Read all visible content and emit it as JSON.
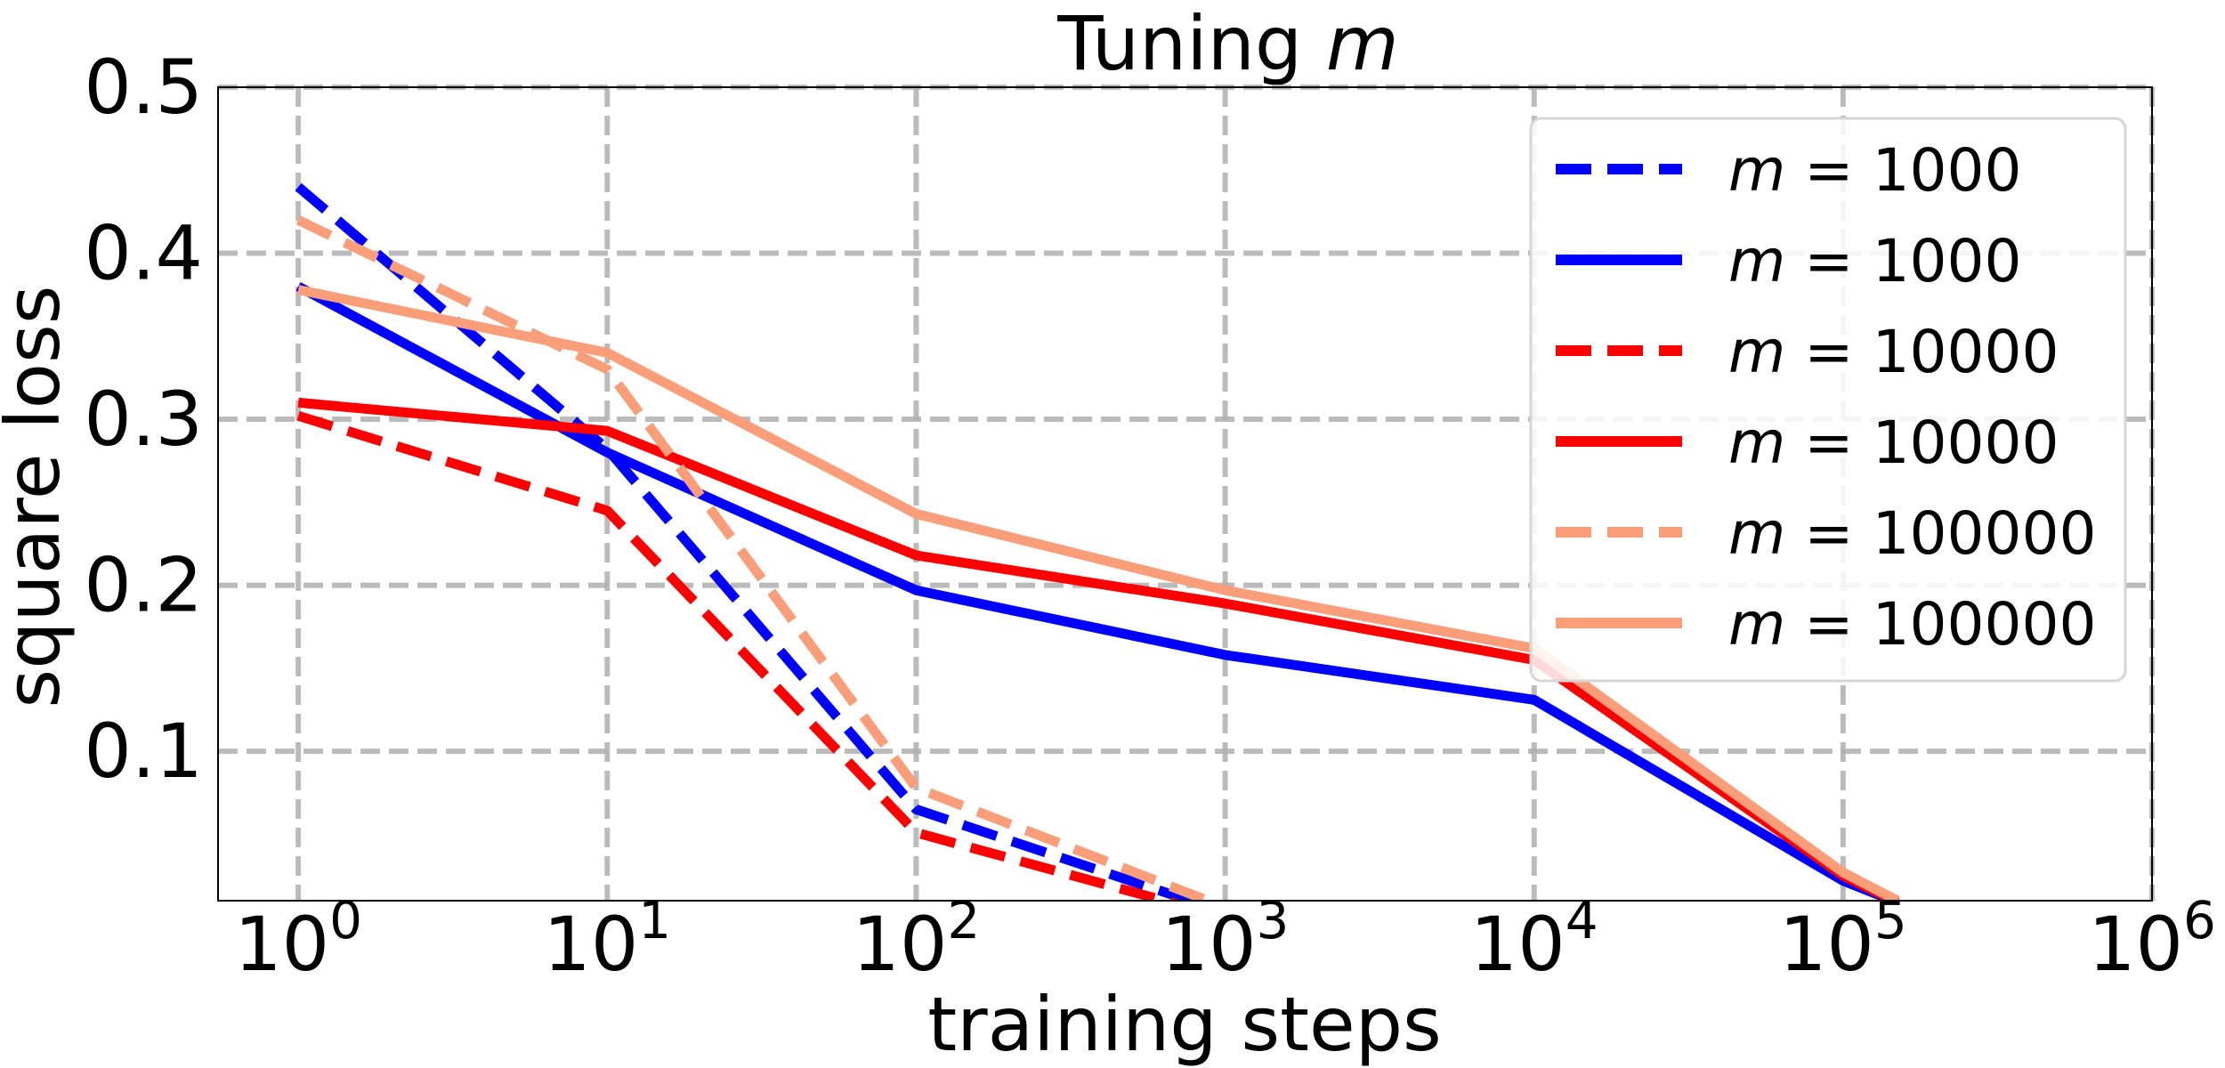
{
  "chart_data": {
    "type": "line",
    "title_prefix": "Tuning ",
    "title_var": "m",
    "xlabel": "training steps",
    "ylabel": "square loss",
    "xscale": "log",
    "xlim": [
      0.55,
      1000000
    ],
    "ylim": [
      0.01,
      0.5
    ],
    "grid": true,
    "legend_position": "top-right",
    "x_ticks": [
      {
        "value": 1,
        "base": "10",
        "exp": "0"
      },
      {
        "value": 10,
        "base": "10",
        "exp": "1"
      },
      {
        "value": 100,
        "base": "10",
        "exp": "2"
      },
      {
        "value": 1000,
        "base": "10",
        "exp": "3"
      },
      {
        "value": 10000,
        "base": "10",
        "exp": "4"
      },
      {
        "value": 100000,
        "base": "10",
        "exp": "5"
      },
      {
        "value": 1000000,
        "base": "10",
        "exp": "6"
      }
    ],
    "y_ticks": [
      {
        "value": 0.1,
        "label": "0.1"
      },
      {
        "value": 0.2,
        "label": "0.2"
      },
      {
        "value": 0.3,
        "label": "0.3"
      },
      {
        "value": 0.4,
        "label": "0.4"
      },
      {
        "value": 0.5,
        "label": "0.5"
      }
    ],
    "series": [
      {
        "name": "m = 1000",
        "var": "m",
        "eq": " = ",
        "num": "1000",
        "color": "#0000ff",
        "style": "dashed",
        "x": [
          1,
          10,
          100,
          1000
        ],
        "y": [
          0.44,
          0.282,
          0.065,
          0.003
        ]
      },
      {
        "name": "m = 1000",
        "var": "m",
        "eq": " = ",
        "num": "1000",
        "color": "#0000ff",
        "style": "solid",
        "x": [
          1,
          10,
          100,
          1000,
          10000,
          100000,
          150000
        ],
        "y": [
          0.38,
          0.28,
          0.197,
          0.158,
          0.131,
          0.022,
          0.009
        ]
      },
      {
        "name": "m = 10000",
        "var": "m",
        "eq": " = ",
        "num": "10000",
        "color": "#ff0000",
        "style": "dashed",
        "x": [
          1,
          10,
          100,
          1000
        ],
        "y": [
          0.302,
          0.245,
          0.051,
          0.0
        ]
      },
      {
        "name": "m = 10000",
        "var": "m",
        "eq": " = ",
        "num": "10000",
        "color": "#ff0000",
        "style": "solid",
        "x": [
          1,
          10,
          100,
          1000,
          10000,
          100000,
          150000
        ],
        "y": [
          0.31,
          0.293,
          0.218,
          0.189,
          0.155,
          0.025,
          0.009
        ]
      },
      {
        "name": "m = 100000",
        "var": "m",
        "eq": " = ",
        "num": "100000",
        "color": "#fa9e79",
        "style": "dashed",
        "x": [
          1,
          10,
          100,
          1000
        ],
        "y": [
          0.42,
          0.33,
          0.078,
          0.006
        ]
      },
      {
        "name": "m = 100000",
        "var": "m",
        "eq": " = ",
        "num": "100000",
        "color": "#fa9e79",
        "style": "solid",
        "x": [
          1,
          10,
          100,
          1000,
          10000,
          100000,
          150000
        ],
        "y": [
          0.378,
          0.34,
          0.243,
          0.197,
          0.162,
          0.027,
          0.01
        ]
      }
    ]
  }
}
